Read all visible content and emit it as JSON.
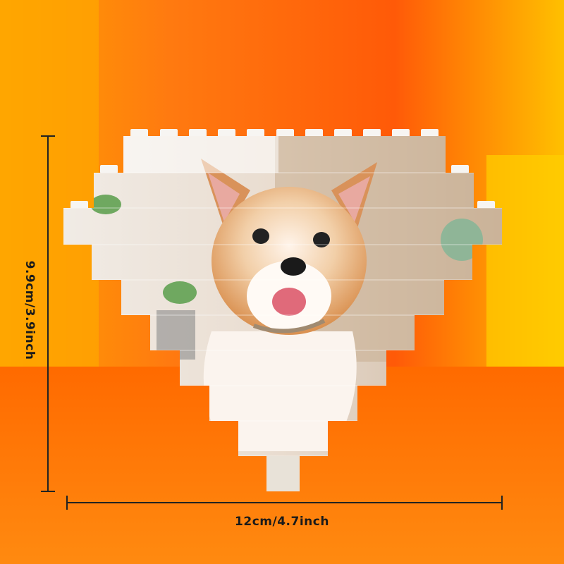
{
  "dimensions": {
    "height_label": "9.9cm/3.9inch",
    "width_label": "12cm/4.7inch"
  },
  "product": {
    "shape": "heart",
    "subject": "corgi puppy photo",
    "material": "building bricks"
  },
  "colors": {
    "background_primary": "#ff6a10",
    "background_secondary": "#ffb000",
    "brick_white": "#f4f1ec",
    "dimension_line": "#222222"
  }
}
